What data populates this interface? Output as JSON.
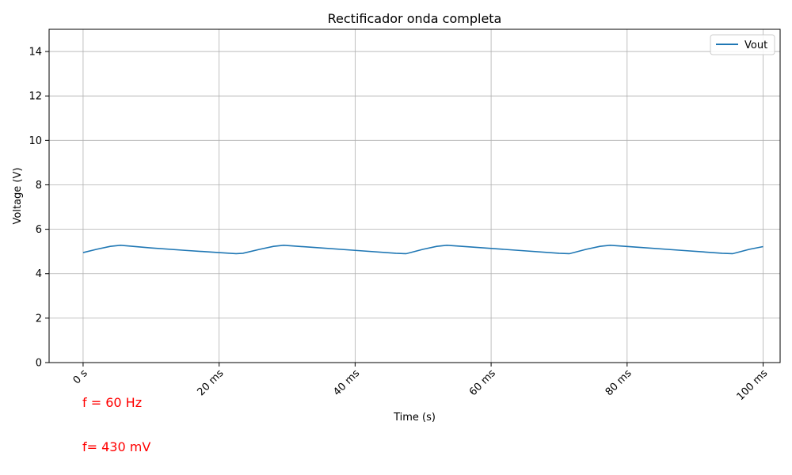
{
  "chart_data": {
    "type": "line",
    "title": "Rectificador onda completa",
    "xlabel": "Time (s)",
    "ylabel": "Voltage (V)",
    "xlim": [
      -0.005,
      0.1025
    ],
    "ylim": [
      0,
      15
    ],
    "x_ticks": [
      {
        "value": 0,
        "label": "0 s"
      },
      {
        "value": 0.02,
        "label": "20 ms"
      },
      {
        "value": 0.04,
        "label": "40 ms"
      },
      {
        "value": 0.06,
        "label": "60 ms"
      },
      {
        "value": 0.08,
        "label": "80 ms"
      },
      {
        "value": 0.1,
        "label": "100 ms"
      }
    ],
    "y_ticks": [
      {
        "value": 0,
        "label": "0"
      },
      {
        "value": 2,
        "label": "2"
      },
      {
        "value": 4,
        "label": "4"
      },
      {
        "value": 6,
        "label": "6"
      },
      {
        "value": 8,
        "label": "8"
      },
      {
        "value": 10,
        "label": "10"
      },
      {
        "value": 12,
        "label": "12"
      },
      {
        "value": 14,
        "label": "14"
      }
    ],
    "grid": true,
    "legend_position": "top-right",
    "series": [
      {
        "name": "Vout",
        "color": "#1f77b4",
        "x": [
          0,
          0.002,
          0.004,
          0.0055,
          0.01,
          0.015,
          0.02,
          0.0225,
          0.0235,
          0.026,
          0.028,
          0.0295,
          0.034,
          0.04,
          0.046,
          0.0475,
          0.05,
          0.052,
          0.0535,
          0.058,
          0.064,
          0.07,
          0.0715,
          0.074,
          0.076,
          0.0775,
          0.082,
          0.088,
          0.094,
          0.0955,
          0.098,
          0.1
        ],
        "y": [
          4.95,
          5.1,
          5.23,
          5.28,
          5.16,
          5.05,
          4.95,
          4.9,
          4.92,
          5.1,
          5.23,
          5.28,
          5.18,
          5.05,
          4.92,
          4.9,
          5.1,
          5.23,
          5.28,
          5.18,
          5.05,
          4.92,
          4.9,
          5.1,
          5.23,
          5.28,
          5.18,
          5.05,
          4.92,
          4.9,
          5.1,
          5.22
        ]
      }
    ],
    "annotations": [
      "f = 60 Hz",
      "f= 430 mV"
    ],
    "annotation_color": "#ff0000"
  }
}
